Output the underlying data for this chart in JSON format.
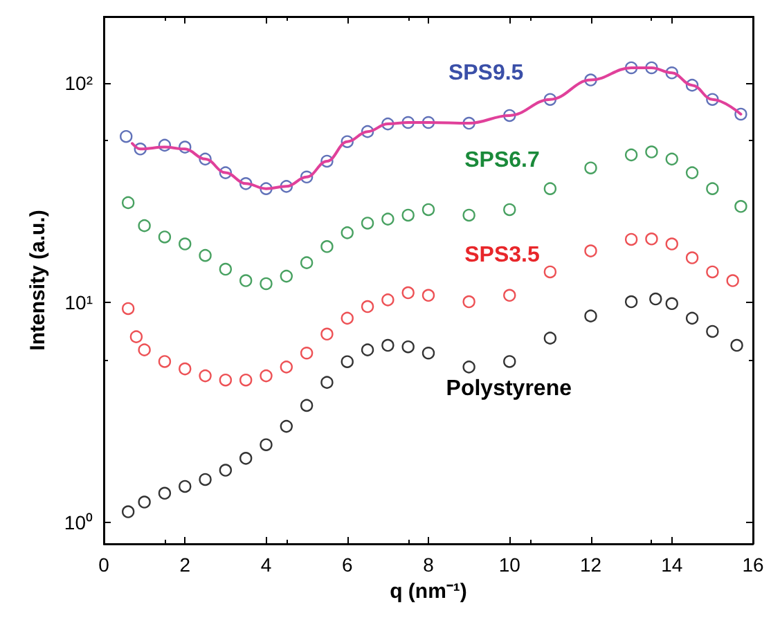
{
  "chart_data": {
    "type": "scatter",
    "xlabel": "q (nm⁻¹)",
    "ylabel": "Intensity (a.u.)",
    "log": "y",
    "marker": "circle",
    "legend": false,
    "grid": false,
    "xlim": [
      0,
      16
    ],
    "xticks": [
      0,
      2,
      4,
      6,
      8,
      10,
      12,
      14,
      16
    ],
    "ylim": [
      0.8,
      200
    ],
    "yticks": [
      {
        "value": 1,
        "label": "10⁰"
      },
      {
        "value": 10,
        "label": "10¹"
      },
      {
        "value": 100,
        "label": "10²"
      }
    ],
    "series": [
      {
        "name": "SPS9.5",
        "color": "#3a4fa8",
        "x": [
          0.55,
          0.9,
          1.5,
          2,
          2.5,
          3,
          3.5,
          4,
          4.5,
          5,
          5.5,
          6,
          6.5,
          7,
          7.5,
          8,
          9,
          10,
          11,
          12,
          13,
          13.5,
          14,
          14.5,
          15,
          15.7
        ],
        "values": [
          57,
          50,
          52,
          51,
          45,
          39,
          34.8,
          33,
          33.8,
          37.3,
          44,
          54,
          60,
          65,
          66,
          66,
          65.5,
          71,
          84,
          103,
          117,
          117,
          111,
          97.5,
          84,
          72
        ]
      },
      {
        "type": "line",
        "color": "#e0409a",
        "marker": "none",
        "x": [
          0.7,
          0.9,
          1.5,
          2,
          2.5,
          3,
          3.5,
          4,
          4.5,
          5,
          5.5,
          6,
          6.5,
          7,
          7.5,
          8,
          9,
          10,
          11,
          12,
          13,
          13.5,
          14,
          14.5,
          15,
          15.7
        ],
        "values": [
          53,
          50,
          51,
          50,
          45,
          39,
          34.8,
          33,
          33.8,
          37.3,
          44,
          54,
          60,
          65,
          66,
          66,
          65.5,
          71,
          84,
          103,
          117,
          117,
          111,
          97.5,
          84,
          72
        ]
      },
      {
        "name": "SPS6.7",
        "color": "#1a8a3a",
        "x": [
          0.6,
          1,
          1.5,
          2,
          2.5,
          3,
          3.5,
          4,
          4.5,
          5,
          5.5,
          6,
          6.5,
          7,
          7.5,
          8,
          9,
          10,
          11,
          12,
          13,
          13.5,
          14,
          14.5,
          15,
          15.7
        ],
        "values": [
          28.5,
          22.4,
          19.9,
          18.5,
          16.4,
          14.2,
          12.6,
          12.2,
          13.2,
          15.2,
          18,
          20.8,
          23,
          24,
          25,
          26.5,
          25,
          26.5,
          33,
          41,
          47,
          48.5,
          45,
          39,
          33,
          27.4
        ]
      },
      {
        "name": "SPS3.5",
        "color": "#e8262a",
        "x": [
          0.6,
          0.8,
          1,
          1.5,
          2,
          2.5,
          3,
          3.5,
          4,
          4.5,
          5,
          5.5,
          6,
          6.5,
          7,
          7.5,
          8,
          9,
          10,
          11,
          12,
          13,
          13.5,
          14,
          14.5,
          15,
          15.5
        ],
        "values": [
          9.4,
          7,
          6.1,
          5.4,
          5,
          4.65,
          4.45,
          4.45,
          4.65,
          5.1,
          5.9,
          7.2,
          8.5,
          9.6,
          10.3,
          11.1,
          10.8,
          10.1,
          10.8,
          13.8,
          17.2,
          19.4,
          19.5,
          18.5,
          16,
          13.8,
          12.6
        ]
      },
      {
        "name": "Polystyrene",
        "color": "#000000",
        "x": [
          0.6,
          1,
          1.5,
          2,
          2.5,
          3,
          3.5,
          4,
          4.5,
          5,
          5.5,
          6,
          6.5,
          7,
          7.5,
          8,
          9,
          10,
          11,
          12,
          13,
          13.6,
          14,
          14.5,
          15,
          15.6
        ],
        "values": [
          1.12,
          1.24,
          1.36,
          1.46,
          1.57,
          1.73,
          1.96,
          2.26,
          2.74,
          3.41,
          4.34,
          5.39,
          6.1,
          6.4,
          6.3,
          5.9,
          5.1,
          5.4,
          6.9,
          8.7,
          10.1,
          10.4,
          9.9,
          8.5,
          7.4,
          6.4
        ]
      }
    ]
  }
}
